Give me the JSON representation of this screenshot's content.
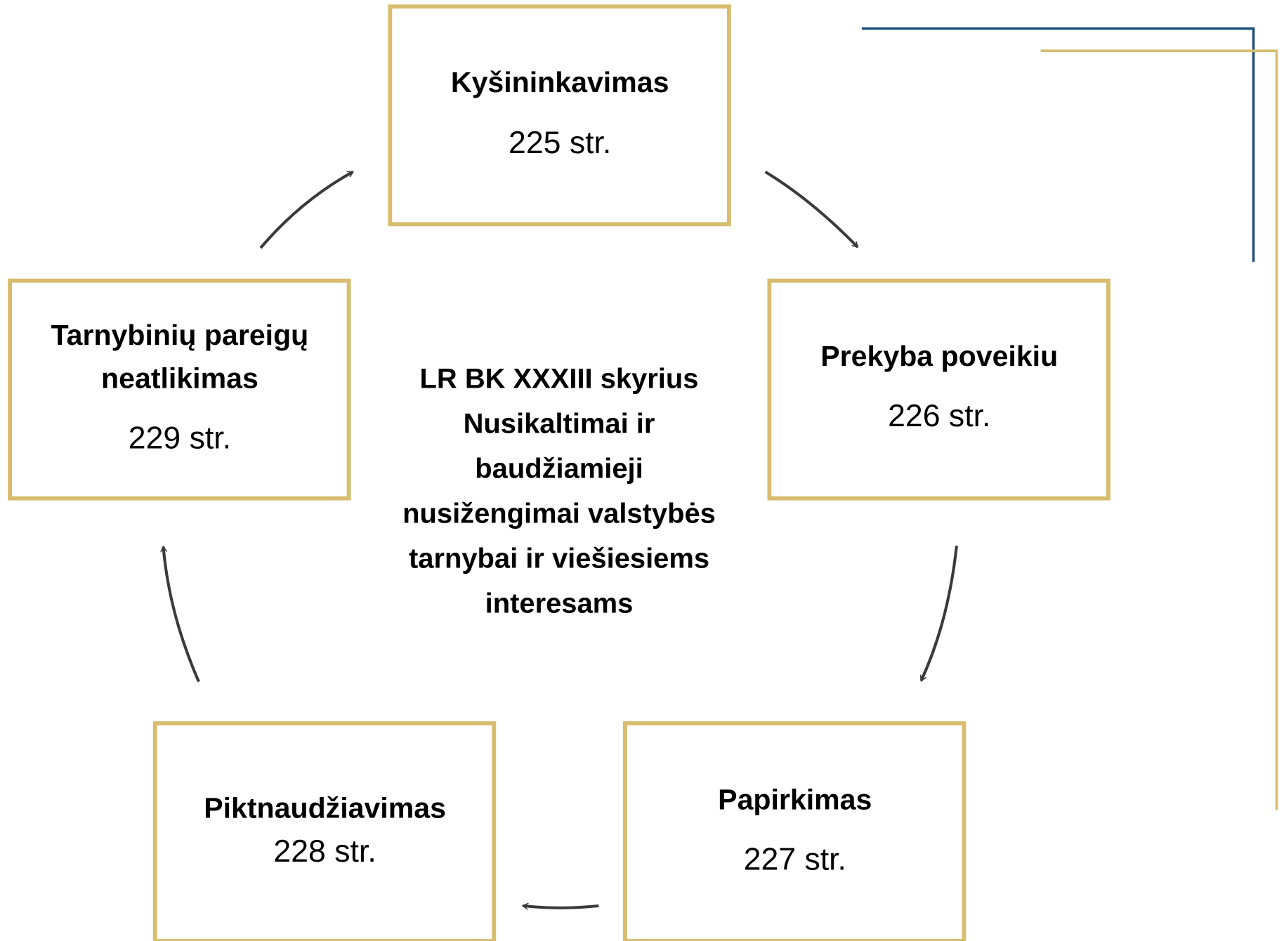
{
  "center": {
    "lines": [
      "LR BK XXXIII skyrius",
      "Nusikaltimai ir",
      "baudžiamieji",
      "nusižengimai valstybės",
      "tarnybai ir viešiesiems",
      "interesams"
    ]
  },
  "nodes": [
    {
      "title": [
        "Kyšininkavimas"
      ],
      "article": "225 str."
    },
    {
      "title": [
        "Prekyba poveikiu"
      ],
      "article": "226 str."
    },
    {
      "title": [
        "Papirkimas"
      ],
      "article": "227 str."
    },
    {
      "title": [
        "Piktnaudžiavimas"
      ],
      "article": "228 str."
    },
    {
      "title": [
        "Tarnybinių pareigų",
        "neatlikimas"
      ],
      "article": "229 str."
    }
  ]
}
